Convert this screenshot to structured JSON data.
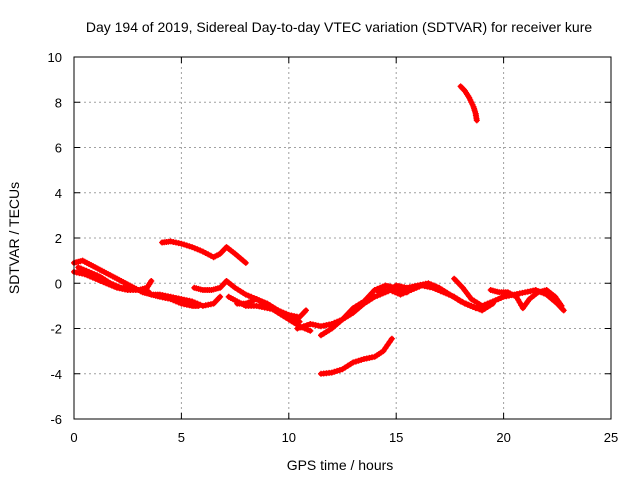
{
  "chart_data": {
    "type": "scatter",
    "title": "Day 194 of 2019, Sidereal Day-to-day VTEC variation (SDTVAR) for receiver kure",
    "xlabel": "GPS time / hours",
    "ylabel": "SDTVAR / TECUs",
    "xlim": [
      0,
      25
    ],
    "ylim": [
      -6,
      10
    ],
    "grid": true,
    "x_ticks": [
      "0",
      "5",
      "10",
      "15",
      "20",
      "25"
    ],
    "y_ticks": [
      "-6",
      "-4",
      "-2",
      "0",
      "2",
      "4",
      "6",
      "8",
      "10"
    ],
    "series_color": "#ff0000",
    "series": [
      {
        "name": "track-a",
        "points": [
          [
            0,
            0.9
          ],
          [
            0.4,
            1.0
          ],
          [
            0.8,
            0.8
          ],
          [
            1.2,
            0.6
          ],
          [
            1.6,
            0.4
          ],
          [
            2.0,
            0.2
          ],
          [
            2.4,
            0.0
          ],
          [
            2.8,
            -0.2
          ],
          [
            3.2,
            -0.4
          ],
          [
            3.6,
            -0.5
          ],
          [
            4.0,
            -0.6
          ],
          [
            4.5,
            -0.7
          ],
          [
            5.0,
            -0.9
          ],
          [
            5.5,
            -1.0
          ],
          [
            5.8,
            -1.0
          ]
        ]
      },
      {
        "name": "track-b",
        "points": [
          [
            0,
            0.5
          ],
          [
            0.5,
            0.4
          ],
          [
            1.0,
            0.2
          ],
          [
            1.5,
            0.0
          ],
          [
            2.0,
            -0.2
          ],
          [
            2.5,
            -0.3
          ],
          [
            3.0,
            -0.3
          ],
          [
            3.5,
            -0.4
          ]
        ]
      },
      {
        "name": "track-c",
        "points": [
          [
            0.2,
            0.7
          ],
          [
            0.7,
            0.5
          ],
          [
            1.2,
            0.3
          ],
          [
            1.7,
            0.0
          ],
          [
            2.2,
            -0.2
          ],
          [
            2.6,
            -0.2
          ],
          [
            3.0,
            -0.3
          ],
          [
            3.4,
            -0.2
          ],
          [
            3.6,
            0.1
          ]
        ]
      },
      {
        "name": "track-d",
        "points": [
          [
            3.6,
            -0.5
          ],
          [
            4.0,
            -0.5
          ],
          [
            4.5,
            -0.6
          ],
          [
            5.0,
            -0.7
          ],
          [
            5.5,
            -0.8
          ],
          [
            6.0,
            -1.0
          ],
          [
            6.5,
            -0.9
          ],
          [
            6.8,
            -0.6
          ]
        ]
      },
      {
        "name": "track-e",
        "points": [
          [
            4.1,
            1.8
          ],
          [
            4.5,
            1.85
          ],
          [
            5.0,
            1.75
          ],
          [
            5.5,
            1.6
          ],
          [
            6.0,
            1.4
          ],
          [
            6.5,
            1.15
          ],
          [
            6.8,
            1.3
          ],
          [
            7.1,
            1.6
          ],
          [
            7.5,
            1.3
          ],
          [
            8.0,
            0.9
          ]
        ]
      },
      {
        "name": "track-f",
        "points": [
          [
            5.6,
            -0.2
          ],
          [
            6.0,
            -0.3
          ],
          [
            6.4,
            -0.3
          ],
          [
            6.8,
            -0.2
          ],
          [
            7.1,
            0.1
          ],
          [
            7.5,
            -0.2
          ],
          [
            8.0,
            -0.5
          ],
          [
            8.5,
            -0.7
          ],
          [
            9.0,
            -1.0
          ],
          [
            9.5,
            -1.3
          ],
          [
            10.0,
            -1.6
          ],
          [
            10.5,
            -1.9
          ],
          [
            11.0,
            -2.1
          ]
        ]
      },
      {
        "name": "track-g",
        "points": [
          [
            7.2,
            -0.6
          ],
          [
            7.6,
            -0.8
          ],
          [
            8.0,
            -1.0
          ],
          [
            8.5,
            -1.0
          ],
          [
            9.0,
            -1.1
          ],
          [
            9.5,
            -1.2
          ],
          [
            10.0,
            -1.5
          ],
          [
            10.5,
            -1.7
          ]
        ]
      },
      {
        "name": "track-h",
        "points": [
          [
            7.6,
            -0.9
          ],
          [
            8.0,
            -0.9
          ],
          [
            8.5,
            -0.7
          ],
          [
            9.0,
            -0.9
          ],
          [
            9.5,
            -1.2
          ],
          [
            10.0,
            -1.4
          ],
          [
            10.5,
            -1.5
          ],
          [
            10.8,
            -1.2
          ]
        ]
      },
      {
        "name": "track-i",
        "points": [
          [
            10.4,
            -2.0
          ],
          [
            11.0,
            -1.8
          ],
          [
            11.5,
            -1.9
          ],
          [
            12.0,
            -1.8
          ],
          [
            12.5,
            -1.6
          ],
          [
            13.0,
            -1.3
          ],
          [
            13.5,
            -0.9
          ],
          [
            14.0,
            -0.6
          ],
          [
            14.5,
            -0.4
          ],
          [
            15.0,
            -0.2
          ]
        ]
      },
      {
        "name": "track-j",
        "points": [
          [
            11.5,
            -2.3
          ],
          [
            12.0,
            -2.0
          ],
          [
            12.5,
            -1.6
          ],
          [
            13.0,
            -1.1
          ],
          [
            13.5,
            -0.8
          ],
          [
            14.0,
            -0.3
          ],
          [
            14.5,
            -0.1
          ],
          [
            15.0,
            -0.2
          ],
          [
            15.5,
            -0.4
          ]
        ]
      },
      {
        "name": "track-k",
        "points": [
          [
            11.5,
            -4.0
          ],
          [
            12.0,
            -3.95
          ],
          [
            12.5,
            -3.8
          ],
          [
            13.0,
            -3.5
          ],
          [
            13.5,
            -3.35
          ],
          [
            14.0,
            -3.25
          ],
          [
            14.4,
            -3.0
          ],
          [
            14.8,
            -2.45
          ]
        ]
      },
      {
        "name": "track-l",
        "points": [
          [
            14.2,
            -0.4
          ],
          [
            14.7,
            -0.3
          ],
          [
            15.2,
            -0.5
          ],
          [
            15.7,
            -0.3
          ],
          [
            16.2,
            -0.1
          ],
          [
            16.7,
            -0.2
          ],
          [
            17.2,
            -0.4
          ],
          [
            17.7,
            -0.6
          ],
          [
            18.2,
            -0.9
          ],
          [
            18.7,
            -1.1
          ]
        ]
      },
      {
        "name": "track-m",
        "points": [
          [
            15.0,
            -0.1
          ],
          [
            15.5,
            -0.2
          ],
          [
            16.0,
            -0.1
          ],
          [
            16.5,
            0.0
          ],
          [
            17.0,
            -0.2
          ],
          [
            17.5,
            -0.5
          ],
          [
            18.0,
            -0.8
          ],
          [
            18.5,
            -1.0
          ],
          [
            19.0,
            -1.2
          ],
          [
            19.5,
            -0.9
          ]
        ]
      },
      {
        "name": "track-n",
        "points": [
          [
            17.7,
            0.2
          ],
          [
            18.1,
            -0.2
          ],
          [
            18.5,
            -0.7
          ],
          [
            19.0,
            -1.0
          ],
          [
            19.5,
            -0.8
          ],
          [
            20.0,
            -0.6
          ],
          [
            20.5,
            -0.5
          ],
          [
            21.0,
            -0.4
          ],
          [
            21.5,
            -0.3
          ],
          [
            22.0,
            -0.5
          ],
          [
            22.5,
            -0.9
          ],
          [
            22.8,
            -1.2
          ]
        ]
      },
      {
        "name": "track-o",
        "points": [
          [
            19.4,
            -0.3
          ],
          [
            19.8,
            -0.4
          ],
          [
            20.2,
            -0.4
          ],
          [
            20.6,
            -0.6
          ],
          [
            20.9,
            -1.1
          ],
          [
            21.2,
            -0.7
          ],
          [
            21.6,
            -0.4
          ],
          [
            22.0,
            -0.3
          ],
          [
            22.4,
            -0.6
          ],
          [
            22.7,
            -1.0
          ]
        ]
      },
      {
        "name": "track-p",
        "points": [
          [
            18.0,
            8.7
          ],
          [
            18.2,
            8.5
          ],
          [
            18.4,
            8.2
          ],
          [
            18.6,
            7.8
          ],
          [
            18.7,
            7.5
          ],
          [
            18.75,
            7.2
          ]
        ]
      }
    ]
  }
}
